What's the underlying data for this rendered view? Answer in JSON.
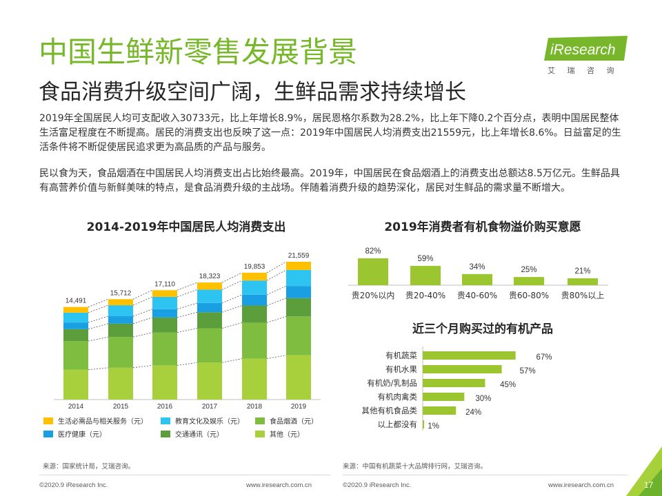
{
  "header": {
    "title": "中国生鲜新零售发展背景",
    "subtitle": "食品消费升级空间广阔，生鲜品需求持续增长"
  },
  "logo": {
    "text": "iResearch",
    "subtext": "艾 瑞 咨 询"
  },
  "body": {
    "paragraphs": [
      "2019年全国居民人均可支配收入30733元，比上年增长8.9%，居民恩格尔系数为28.2%，比上年下降0.2个百分点，表明中国居民整体生活富足程度在不断提高。居民的消费支出也反映了这一点：2019年中国居民人均消费支出21559元，比上年增长8.6%。日益富足的生活条件将不断促使居民追求更为高品质的产品与服务。",
      "民以食为天，食品烟酒在中国居民人均消费支出占比始终最高。2019年，中国居民在食品烟酒上的消费支出总额达8.5万亿元。生鲜品具有高营养价值与新鲜美味的特点，是食品消费升级的主战场。伴随着消费升级的趋势深化，居民对生鲜品的需求量不断增大。"
    ]
  },
  "chart_data": [
    {
      "type": "bar",
      "stacked": true,
      "title": "2014-2019年中国居民人均消费支出",
      "categories": [
        "2014",
        "2015",
        "2016",
        "2017",
        "2018",
        "2019"
      ],
      "totals": [
        14491,
        15712,
        17110,
        18323,
        19853,
        21559
      ],
      "legend": "bottom",
      "series": [
        {
          "name": "生活必需品与相关服务（元）",
          "color": "#ffc000",
          "values": [
            890,
            950,
            1040,
            1120,
            1220,
            1280
          ]
        },
        {
          "name": "教育文化及娱乐（元）",
          "color": "#2ec4f2",
          "values": [
            1540,
            1720,
            1920,
            2090,
            2230,
            2510
          ]
        },
        {
          "name": "食品烟酒（元）",
          "color": "#7ebd3f",
          "values": [
            4490,
            4810,
            5150,
            5370,
            5630,
            6080
          ]
        },
        {
          "name": "医疗健康（元）",
          "color": "#1a9fe3",
          "values": [
            1040,
            1160,
            1310,
            1450,
            1690,
            1900
          ]
        },
        {
          "name": "交通通讯（元）",
          "color": "#5c9e3c",
          "values": [
            1870,
            2090,
            2340,
            2500,
            2680,
            2860
          ]
        },
        {
          "name": "其他（元）",
          "color": "#a8cf3c",
          "values": [
            4660,
            4980,
            5350,
            5790,
            6400,
            6930
          ]
        }
      ]
    },
    {
      "type": "bar",
      "title": "2019年消费者有机食物溢价购买意愿",
      "categories": [
        "贵20%以内",
        "贵20-40%",
        "贵40-60%",
        "贵60-80%",
        "贵80%以上"
      ],
      "values": [
        82,
        59,
        34,
        25,
        21
      ],
      "value_suffix": "%",
      "color": "#9cc630"
    },
    {
      "type": "bar",
      "orientation": "horizontal",
      "title": "近三个月购买过的有机产品",
      "categories": [
        "有机蔬菜",
        "有机水果",
        "有机奶/乳制品",
        "有机肉禽类",
        "其他有机食品类",
        "以上都没有"
      ],
      "values": [
        67,
        57,
        45,
        30,
        24,
        1
      ],
      "value_suffix": "%",
      "color": "#9cc630"
    }
  ],
  "sources": {
    "left": "来源：国家统计局，艾瑞咨询。",
    "right": "来源：中国有机蔬菜十大品牌排行网，艾瑞咨询。"
  },
  "footer": {
    "copyright_left": "©2020.9 iResearch Inc.",
    "url_left": "www.iresearch.com.cn",
    "copyright_right": "©2020.9 iResearch Inc.",
    "url_right": "www.iresearch.com.cn",
    "page_number": "17"
  },
  "colors": {
    "brand_green": "#76b82a",
    "corner_light_green": "#a6d13a",
    "corner_dark_green": "#6db22c",
    "axis_gray": "#bfbfbf"
  }
}
